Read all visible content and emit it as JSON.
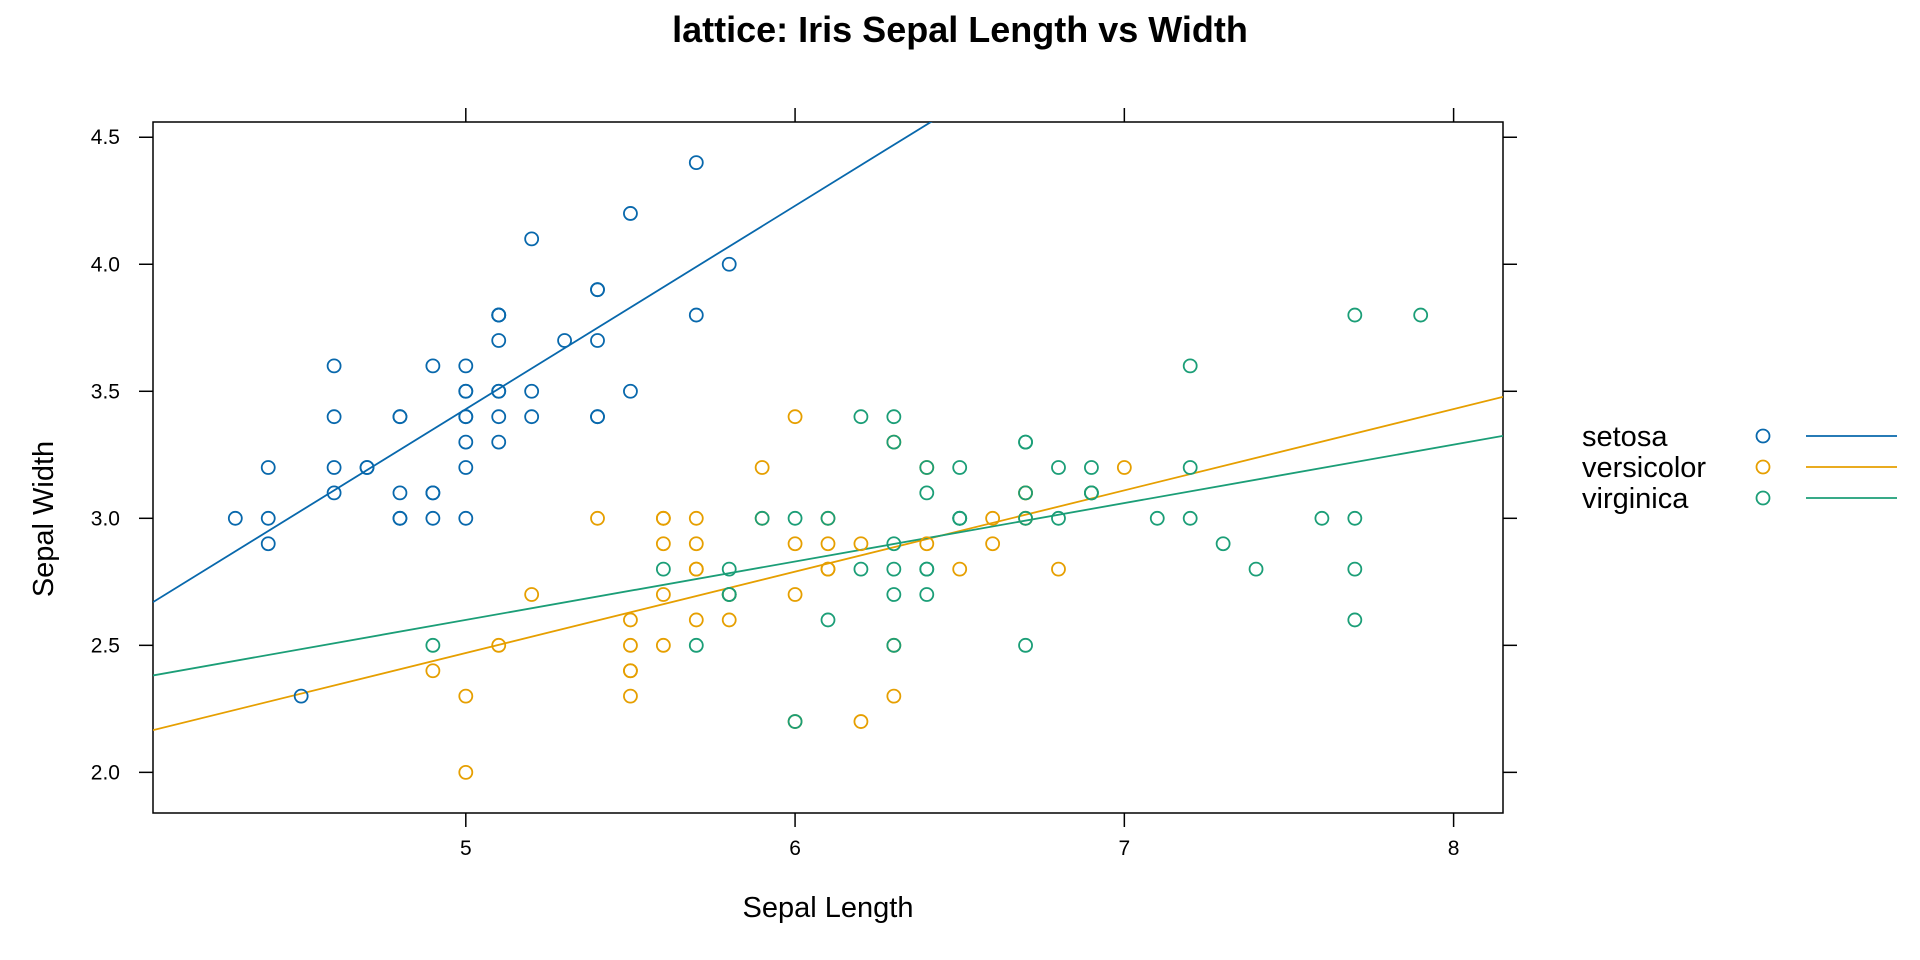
{
  "chart_data": {
    "type": "scatter",
    "title": "lattice: Iris Sepal Length vs Width",
    "xlabel": "Sepal Length",
    "ylabel": "Sepal Width",
    "xlim": [
      4.05,
      8.15
    ],
    "ylim": [
      1.84,
      4.56
    ],
    "x_ticks": [
      5,
      6,
      7,
      8
    ],
    "x_tick_labels": [
      "5",
      "6",
      "7",
      "8"
    ],
    "y_ticks": [
      2.0,
      2.5,
      3.0,
      3.5,
      4.0,
      4.5
    ],
    "y_tick_labels": [
      "2.0",
      "2.5",
      "3.0",
      "3.5",
      "4.0",
      "4.5"
    ],
    "grid": false,
    "legend_position": "right",
    "series": [
      {
        "name": "setosa",
        "color": "#0868ac",
        "regression": {
          "intercept": -0.57,
          "slope": 0.8
        },
        "points": [
          [
            5.1,
            3.5
          ],
          [
            4.9,
            3.0
          ],
          [
            4.7,
            3.2
          ],
          [
            4.6,
            3.1
          ],
          [
            5.0,
            3.6
          ],
          [
            5.4,
            3.9
          ],
          [
            4.6,
            3.4
          ],
          [
            5.0,
            3.4
          ],
          [
            4.4,
            2.9
          ],
          [
            4.9,
            3.1
          ],
          [
            5.4,
            3.7
          ],
          [
            4.8,
            3.4
          ],
          [
            4.8,
            3.0
          ],
          [
            4.3,
            3.0
          ],
          [
            5.8,
            4.0
          ],
          [
            5.7,
            4.4
          ],
          [
            5.4,
            3.9
          ],
          [
            5.1,
            3.5
          ],
          [
            5.7,
            3.8
          ],
          [
            5.1,
            3.8
          ],
          [
            5.4,
            3.4
          ],
          [
            5.1,
            3.7
          ],
          [
            4.6,
            3.6
          ],
          [
            5.1,
            3.3
          ],
          [
            4.8,
            3.4
          ],
          [
            5.0,
            3.0
          ],
          [
            5.0,
            3.4
          ],
          [
            5.2,
            3.5
          ],
          [
            5.2,
            3.4
          ],
          [
            4.7,
            3.2
          ],
          [
            4.8,
            3.1
          ],
          [
            5.4,
            3.4
          ],
          [
            5.2,
            4.1
          ],
          [
            5.5,
            4.2
          ],
          [
            4.9,
            3.1
          ],
          [
            5.0,
            3.2
          ],
          [
            5.5,
            3.5
          ],
          [
            4.9,
            3.6
          ],
          [
            4.4,
            3.0
          ],
          [
            5.1,
            3.4
          ],
          [
            5.0,
            3.5
          ],
          [
            4.5,
            2.3
          ],
          [
            4.4,
            3.2
          ],
          [
            5.0,
            3.5
          ],
          [
            5.1,
            3.8
          ],
          [
            4.8,
            3.0
          ],
          [
            5.1,
            3.8
          ],
          [
            4.6,
            3.2
          ],
          [
            5.3,
            3.7
          ],
          [
            5.0,
            3.3
          ]
        ]
      },
      {
        "name": "versicolor",
        "color": "#e69f00",
        "regression": {
          "intercept": 0.87,
          "slope": 0.32
        },
        "points": [
          [
            7.0,
            3.2
          ],
          [
            6.4,
            3.2
          ],
          [
            6.9,
            3.1
          ],
          [
            5.5,
            2.3
          ],
          [
            6.5,
            2.8
          ],
          [
            5.7,
            2.8
          ],
          [
            6.3,
            3.3
          ],
          [
            4.9,
            2.4
          ],
          [
            6.6,
            2.9
          ],
          [
            5.2,
            2.7
          ],
          [
            5.0,
            2.0
          ],
          [
            5.9,
            3.0
          ],
          [
            6.0,
            2.2
          ],
          [
            6.1,
            2.9
          ],
          [
            5.6,
            2.9
          ],
          [
            6.7,
            3.1
          ],
          [
            5.6,
            3.0
          ],
          [
            5.8,
            2.7
          ],
          [
            6.2,
            2.2
          ],
          [
            5.6,
            2.5
          ],
          [
            5.9,
            3.2
          ],
          [
            6.1,
            2.8
          ],
          [
            6.3,
            2.5
          ],
          [
            6.1,
            2.8
          ],
          [
            6.4,
            2.9
          ],
          [
            6.6,
            3.0
          ],
          [
            6.8,
            2.8
          ],
          [
            6.7,
            3.0
          ],
          [
            6.0,
            2.9
          ],
          [
            5.7,
            2.6
          ],
          [
            5.5,
            2.4
          ],
          [
            5.5,
            2.4
          ],
          [
            5.8,
            2.7
          ],
          [
            6.0,
            2.7
          ],
          [
            5.4,
            3.0
          ],
          [
            6.0,
            3.4
          ],
          [
            6.7,
            3.1
          ],
          [
            6.3,
            2.3
          ],
          [
            5.6,
            3.0
          ],
          [
            5.5,
            2.5
          ],
          [
            5.5,
            2.6
          ],
          [
            6.1,
            3.0
          ],
          [
            5.8,
            2.6
          ],
          [
            5.0,
            2.3
          ],
          [
            5.6,
            2.7
          ],
          [
            5.7,
            3.0
          ],
          [
            5.7,
            2.9
          ],
          [
            6.2,
            2.9
          ],
          [
            5.1,
            2.5
          ],
          [
            5.7,
            2.8
          ]
        ]
      },
      {
        "name": "virginica",
        "color": "#1b9e77",
        "regression": {
          "intercept": 1.45,
          "slope": 0.23
        },
        "points": [
          [
            6.3,
            3.3
          ],
          [
            5.8,
            2.7
          ],
          [
            7.1,
            3.0
          ],
          [
            6.3,
            2.9
          ],
          [
            6.5,
            3.0
          ],
          [
            7.6,
            3.0
          ],
          [
            4.9,
            2.5
          ],
          [
            7.3,
            2.9
          ],
          [
            6.7,
            2.5
          ],
          [
            7.2,
            3.6
          ],
          [
            6.5,
            3.2
          ],
          [
            6.4,
            2.7
          ],
          [
            6.8,
            3.0
          ],
          [
            5.7,
            2.5
          ],
          [
            5.8,
            2.8
          ],
          [
            6.4,
            3.2
          ],
          [
            6.5,
            3.0
          ],
          [
            7.7,
            3.8
          ],
          [
            7.7,
            2.6
          ],
          [
            6.0,
            2.2
          ],
          [
            6.9,
            3.2
          ],
          [
            5.6,
            2.8
          ],
          [
            7.7,
            2.8
          ],
          [
            6.3,
            2.7
          ],
          [
            6.7,
            3.3
          ],
          [
            7.2,
            3.2
          ],
          [
            6.2,
            2.8
          ],
          [
            6.1,
            3.0
          ],
          [
            6.4,
            2.8
          ],
          [
            7.2,
            3.0
          ],
          [
            7.4,
            2.8
          ],
          [
            7.9,
            3.8
          ],
          [
            6.4,
            2.8
          ],
          [
            6.3,
            2.8
          ],
          [
            6.1,
            2.6
          ],
          [
            7.7,
            3.0
          ],
          [
            6.3,
            3.4
          ],
          [
            6.4,
            3.1
          ],
          [
            6.0,
            3.0
          ],
          [
            6.9,
            3.1
          ],
          [
            6.7,
            3.1
          ],
          [
            6.9,
            3.1
          ],
          [
            5.8,
            2.7
          ],
          [
            6.8,
            3.2
          ],
          [
            6.7,
            3.3
          ],
          [
            6.7,
            3.0
          ],
          [
            6.3,
            2.5
          ],
          [
            6.5,
            3.0
          ],
          [
            6.2,
            3.4
          ],
          [
            5.9,
            3.0
          ]
        ]
      }
    ]
  }
}
